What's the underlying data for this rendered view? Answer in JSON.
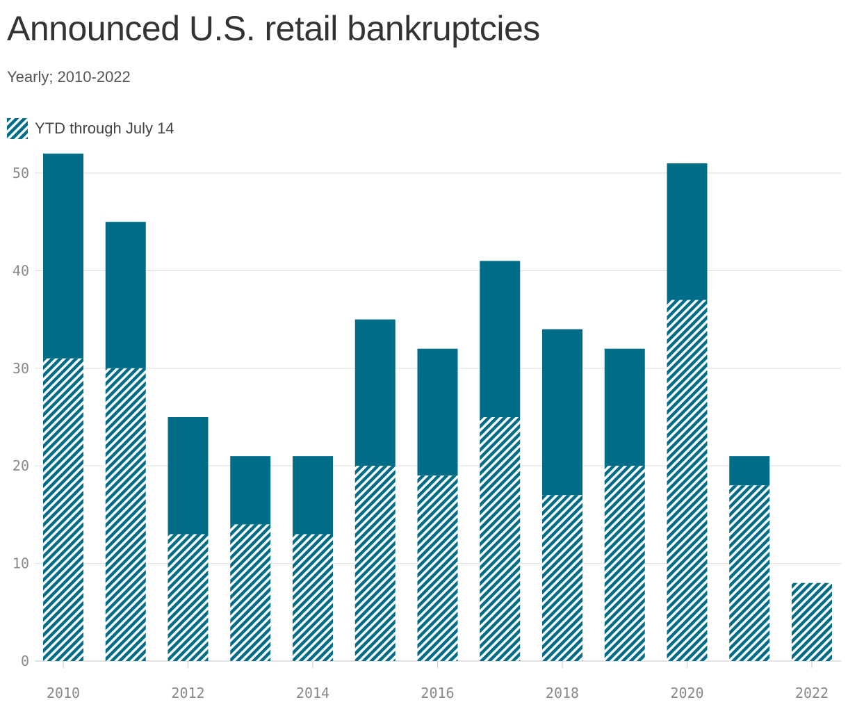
{
  "title": "Announced U.S. retail bankruptcies",
  "subtitle": "Yearly; 2010-2022",
  "legend": {
    "hatched_label": "YTD through July 14"
  },
  "colors": {
    "bar": "#006d88",
    "hatch_bg": "#ffffff",
    "grid": "#e2e2e2",
    "text": "#333333"
  },
  "chart_data": {
    "type": "bar",
    "categories": [
      "2010",
      "2011",
      "2012",
      "2013",
      "2014",
      "2015",
      "2016",
      "2017",
      "2018",
      "2019",
      "2020",
      "2021",
      "2022"
    ],
    "series": [
      {
        "name": "YTD through July 14",
        "values": [
          31,
          30,
          13,
          14,
          13,
          20,
          19,
          25,
          17,
          20,
          37,
          18,
          8
        ],
        "pattern": "hatched"
      },
      {
        "values": [
          52,
          45,
          25,
          21,
          21,
          35,
          32,
          41,
          34,
          32,
          51,
          21,
          8
        ],
        "pattern": "solid"
      }
    ],
    "ylim": [
      0,
      52
    ],
    "yticks": [
      0,
      10,
      20,
      30,
      40,
      50
    ],
    "xticks": [
      "2010",
      "2012",
      "2014",
      "2016",
      "2018",
      "2020",
      "2022"
    ],
    "grid": true,
    "legend_position": "top-left"
  }
}
